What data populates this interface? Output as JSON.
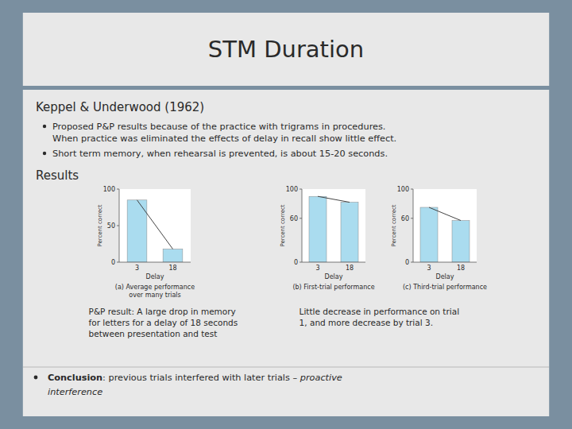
{
  "slide": {
    "title": "STM Duration",
    "heading": "Keppel & Underwood (1962)",
    "bullets": [
      [
        "Proposed P&P results because of the practice with trigrams in procedures.",
        "When practice was eliminated the effects of delay in recall show little effect."
      ],
      [
        "Short term memory, when rehearsal is prevented, is about 15-20 seconds."
      ]
    ],
    "results_label": "Results",
    "captions": [
      "P&P result: A large drop in memory\nfor letters for a delay of 18 seconds\nbetween presentation and test",
      "Little decrease in performance on trial\n1, and more decrease by trial 3."
    ],
    "conclusion": {
      "bold": "Conclusion",
      "normal": ": previous trials interfered with later trials – ",
      "italic1": "proactive",
      "italic2": "interference"
    },
    "background": "#7a8fa0",
    "title_bg": "#e8e8e8",
    "content_bg": "#e8e8e8",
    "text_color": "#2a2a2a"
  },
  "chart_data": [
    {
      "type": "bar",
      "title": "(a) Average performance\nover many trials",
      "categories": [
        "3",
        "18"
      ],
      "values": [
        85,
        18
      ],
      "color": "#aadcef",
      "ylim": [
        0,
        100
      ],
      "yticks": [
        0,
        50,
        100
      ],
      "x_label": "Delay",
      "y_label": "Percent correct"
    },
    {
      "type": "bar",
      "title": "(b) First-trial performance",
      "categories": [
        "3",
        "18"
      ],
      "values": [
        90,
        82
      ],
      "color": "#aadcef",
      "ylim": [
        0,
        100
      ],
      "yticks": [
        0,
        60,
        100
      ],
      "x_label": "Delay",
      "y_label": "Percent correct"
    },
    {
      "type": "bar",
      "title": "(c) Third-trial performance",
      "categories": [
        "3",
        "18"
      ],
      "values": [
        75,
        57
      ],
      "color": "#aadcef",
      "ylim": [
        0,
        100
      ],
      "yticks": [
        0,
        60,
        100
      ],
      "x_label": "Delay",
      "y_label": "Percent correct"
    }
  ]
}
